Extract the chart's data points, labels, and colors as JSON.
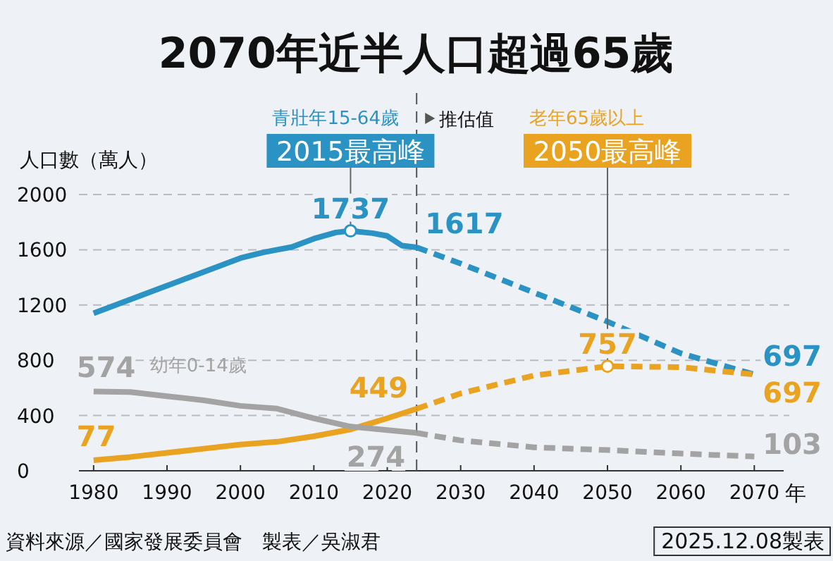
{
  "chart_data": {
    "type": "line",
    "title": "2070年近半人口超過65歲",
    "ylabel": "人口數（萬人）",
    "xlabel": "年",
    "xlim": [
      1978,
      2074
    ],
    "xticks": [
      1980,
      1990,
      2000,
      2010,
      2020,
      2030,
      2040,
      2050,
      2060,
      2070
    ],
    "ylim": [
      0,
      2000
    ],
    "yticks": [
      0,
      400,
      800,
      1200,
      1600,
      2000
    ],
    "grid": "y",
    "series": [
      {
        "name": "青壯年15-64歲",
        "color": "#2b93c4",
        "line_style": "solid",
        "x": [
          1980,
          1983,
          1986,
          1989,
          1992,
          1994,
          1997,
          2000,
          2003,
          2005,
          2007,
          2010,
          2013,
          2015,
          2018,
          2020,
          2022,
          2024
        ],
        "values": [
          1140,
          1200,
          1260,
          1320,
          1380,
          1420,
          1480,
          1540,
          1580,
          1600,
          1620,
          1680,
          1725,
          1737,
          1720,
          1700,
          1630,
          1617
        ],
        "value_labels": [
          null,
          null,
          null,
          null,
          null,
          null,
          null,
          null,
          null,
          null,
          null,
          null,
          null,
          "1737",
          null,
          null,
          null,
          "1617"
        ]
      },
      {
        "color": "#2b93c4",
        "line_style": "dashed",
        "x": [
          2024,
          2030,
          2040,
          2050,
          2060,
          2070
        ],
        "values": [
          1617,
          1500,
          1290,
          1080,
          850,
          697
        ],
        "value_labels": [
          null,
          null,
          null,
          null,
          null,
          "697"
        ]
      },
      {
        "name": "老年65歲以上",
        "color": "#e9a321",
        "line_style": "solid",
        "x": [
          1980,
          1985,
          1990,
          1995,
          2000,
          2005,
          2010,
          2015,
          2020,
          2024
        ],
        "values": [
          77,
          100,
          130,
          160,
          190,
          210,
          250,
          300,
          380,
          449
        ],
        "value_labels": [
          "77",
          null,
          null,
          null,
          null,
          null,
          null,
          null,
          null,
          "449"
        ]
      },
      {
        "color": "#e9a321",
        "line_style": "dashed",
        "x": [
          2024,
          2030,
          2040,
          2050,
          2060,
          2070
        ],
        "values": [
          449,
          560,
          690,
          757,
          750,
          697
        ],
        "value_labels": [
          null,
          null,
          null,
          "757",
          null,
          "697"
        ]
      },
      {
        "name": "幼年0-14歲",
        "color": "#a3a3a3",
        "line_style": "solid",
        "x": [
          1980,
          1985,
          1990,
          1995,
          2000,
          2005,
          2010,
          2015,
          2020,
          2024
        ],
        "values": [
          574,
          570,
          540,
          510,
          470,
          450,
          380,
          320,
          295,
          274
        ],
        "value_labels": [
          "574",
          null,
          null,
          null,
          null,
          null,
          null,
          null,
          null,
          "274"
        ]
      },
      {
        "color": "#a3a3a3",
        "line_style": "dashed",
        "x": [
          2024,
          2030,
          2040,
          2050,
          2060,
          2070
        ],
        "values": [
          274,
          220,
          170,
          150,
          125,
          103
        ],
        "value_labels": [
          null,
          null,
          null,
          null,
          null,
          "103"
        ]
      }
    ],
    "ref_lines": [
      {
        "axis": "x",
        "value": 2024,
        "label": "推估值",
        "line_style": "dashed",
        "color": "#555555"
      }
    ],
    "annotations": [
      {
        "text": "2015最高峰",
        "x": 2015,
        "y": 1737
      },
      {
        "text": "2050最高峰",
        "x": 2050,
        "y": 757
      },
      "資料來源／國家發展委員會　製表／吳淑君",
      "2025.12.08製表"
    ]
  }
}
